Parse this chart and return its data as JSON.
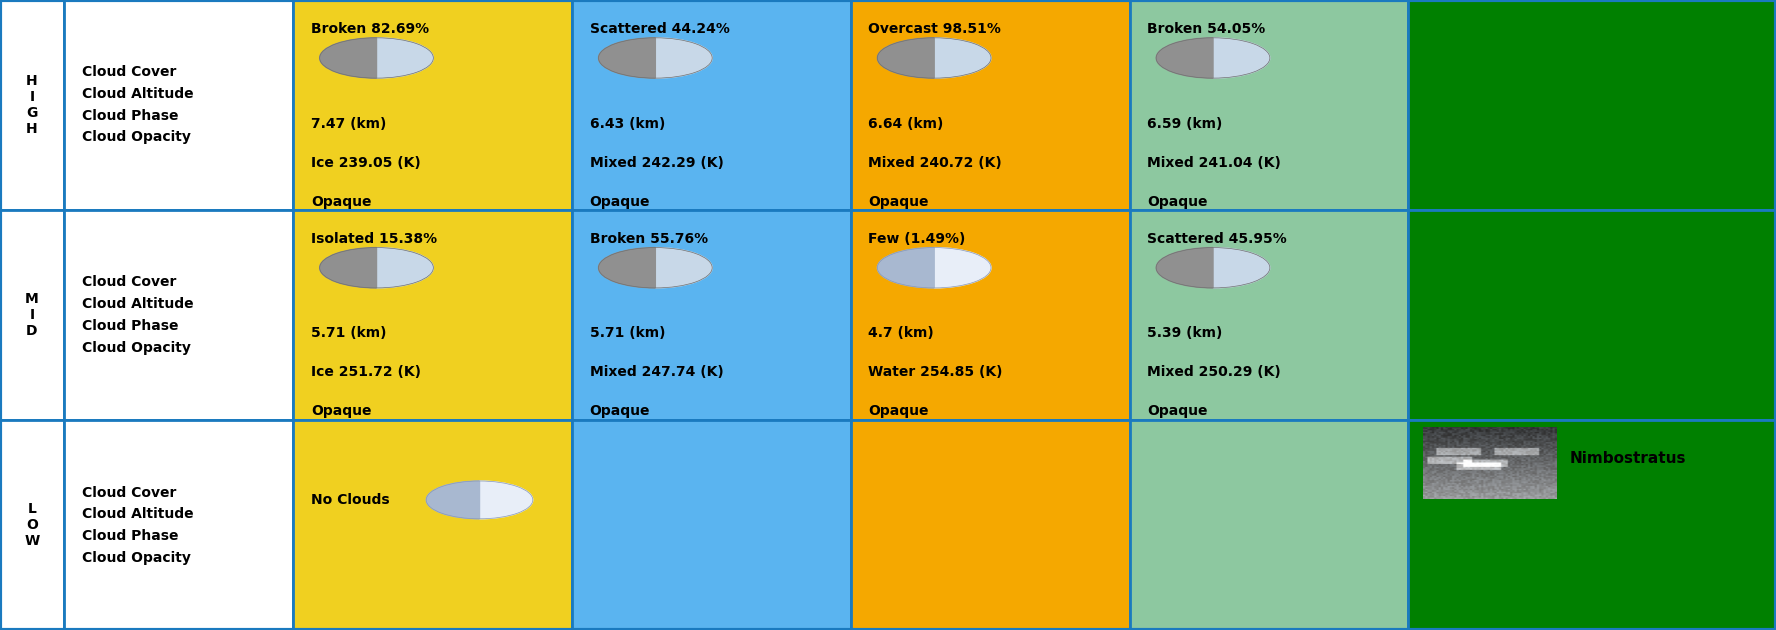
{
  "altitude_labels": [
    "H\nI\nG\nH",
    "M\nI\nD",
    "L\nO\nW"
  ],
  "row_labels": [
    [
      "Cloud Cover",
      "Cloud Altitude",
      "Cloud Phase",
      "Cloud Opacity"
    ],
    [
      "Cloud Cover",
      "Cloud Altitude",
      "Cloud Phase",
      "Cloud Opacity"
    ],
    [
      "Cloud Cover",
      "Cloud Altitude",
      "Cloud Phase",
      "Cloud Opacity"
    ]
  ],
  "border_color": "#1a7abf",
  "cells": {
    "high": {
      "col1": {
        "cover": "Broken 82.69%",
        "altitude": "7.47 (km)",
        "phase": "Ice 239.05 (K)",
        "opacity": "Opaque",
        "bg": "#f0d020",
        "icon": "gray"
      },
      "col2": {
        "cover": "Scattered 44.24%",
        "altitude": "6.43 (km)",
        "phase": "Mixed 242.29 (K)",
        "opacity": "Opaque",
        "bg": "#5ab4f0",
        "icon": "gray"
      },
      "col3": {
        "cover": "Overcast 98.51%",
        "altitude": "6.64 (km)",
        "phase": "Mixed 240.72 (K)",
        "opacity": "Opaque",
        "bg": "#f5a800",
        "icon": "gray"
      },
      "col4": {
        "cover": "Broken 54.05%",
        "altitude": "6.59 (km)",
        "phase": "Mixed 241.04 (K)",
        "opacity": "Opaque",
        "bg": "#8dc8a0",
        "icon": "gray"
      },
      "col5": {
        "cover": "",
        "altitude": "",
        "phase": "",
        "opacity": "",
        "bg": "#008000",
        "icon": ""
      }
    },
    "mid": {
      "col1": {
        "cover": "Isolated 15.38%",
        "altitude": "5.71 (km)",
        "phase": "Ice 251.72 (K)",
        "opacity": "Opaque",
        "bg": "#f0d020",
        "icon": "gray"
      },
      "col2": {
        "cover": "Broken 55.76%",
        "altitude": "5.71 (km)",
        "phase": "Mixed 247.74 (K)",
        "opacity": "Opaque",
        "bg": "#5ab4f0",
        "icon": "gray"
      },
      "col3": {
        "cover": "Few (1.49%)",
        "altitude": "4.7 (km)",
        "phase": "Water 254.85 (K)",
        "opacity": "Opaque",
        "bg": "#f5a800",
        "icon": "blue"
      },
      "col4": {
        "cover": "Scattered 45.95%",
        "altitude": "5.39 (km)",
        "phase": "Mixed 250.29 (K)",
        "opacity": "Opaque",
        "bg": "#8dc8a0",
        "icon": "gray"
      },
      "col5": {
        "cover": "",
        "altitude": "",
        "phase": "",
        "opacity": "",
        "bg": "#008000",
        "icon": ""
      }
    },
    "low": {
      "col1": {
        "cover": "No Clouds",
        "altitude": "",
        "phase": "",
        "opacity": "",
        "bg": "#f0d020",
        "icon": "blue"
      },
      "col2": {
        "cover": "",
        "altitude": "",
        "phase": "",
        "opacity": "",
        "bg": "#5ab4f0",
        "icon": ""
      },
      "col3": {
        "cover": "",
        "altitude": "",
        "phase": "",
        "opacity": "",
        "bg": "#f5a800",
        "icon": ""
      },
      "col4": {
        "cover": "",
        "altitude": "",
        "phase": "",
        "opacity": "",
        "bg": "#8dc8a0",
        "icon": ""
      },
      "col5": {
        "cover": "Nimbostratus",
        "altitude": "",
        "phase": "",
        "opacity": "",
        "bg": "#008000",
        "icon": "nimbostratus"
      }
    }
  }
}
